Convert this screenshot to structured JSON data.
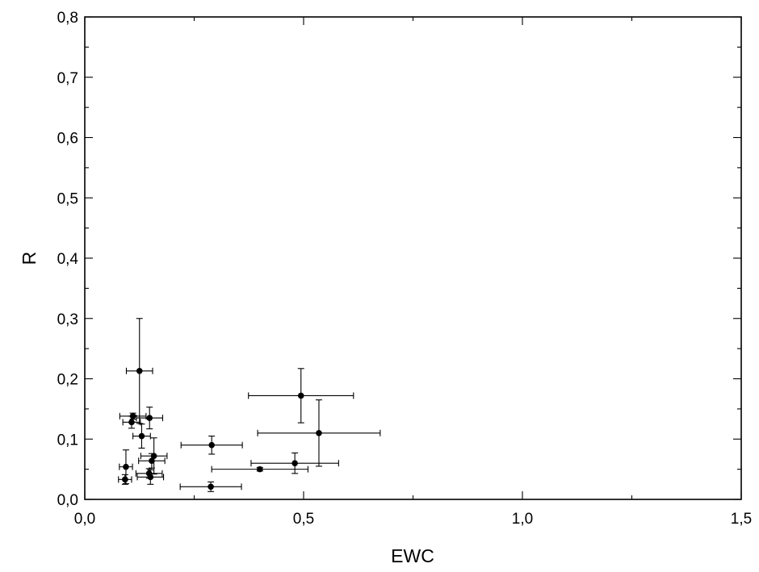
{
  "chart_data": {
    "type": "scatter",
    "title": "",
    "xlabel": "EWC",
    "ylabel": "R",
    "xlim": [
      0,
      1.5
    ],
    "ylim": [
      0,
      0.8
    ],
    "x_ticks": [
      {
        "value": 0,
        "label": "0,0"
      },
      {
        "value": 0.5,
        "label": "0,5"
      },
      {
        "value": 1.0,
        "label": "1,0"
      },
      {
        "value": 1.5,
        "label": "1,5"
      }
    ],
    "y_ticks": [
      {
        "value": 0,
        "label": "0,0"
      },
      {
        "value": 0.1,
        "label": "0,1"
      },
      {
        "value": 0.2,
        "label": "0,2"
      },
      {
        "value": 0.3,
        "label": "0,3"
      },
      {
        "value": 0.4,
        "label": "0,4"
      },
      {
        "value": 0.5,
        "label": "0,5"
      },
      {
        "value": 0.6,
        "label": "0,6"
      },
      {
        "value": 0.7,
        "label": "0,7"
      },
      {
        "value": 0.8,
        "label": "0,8"
      }
    ],
    "grid": false,
    "points": [
      {
        "x": 0.125,
        "y": 0.213,
        "xerr": 0.03,
        "yerr": 0.087
      },
      {
        "x": 0.107,
        "y": 0.128,
        "xerr": 0.02,
        "yerr": 0.01
      },
      {
        "x": 0.11,
        "y": 0.138,
        "xerr": 0.03,
        "yerr": 0.005
      },
      {
        "x": 0.148,
        "y": 0.135,
        "xerr": 0.03,
        "yerr": 0.018
      },
      {
        "x": 0.13,
        "y": 0.105,
        "xerr": 0.02,
        "yerr": 0.02
      },
      {
        "x": 0.094,
        "y": 0.054,
        "xerr": 0.015,
        "yerr": 0.028
      },
      {
        "x": 0.092,
        "y": 0.033,
        "xerr": 0.015,
        "yerr": 0.008
      },
      {
        "x": 0.158,
        "y": 0.072,
        "xerr": 0.03,
        "yerr": 0.03
      },
      {
        "x": 0.153,
        "y": 0.064,
        "xerr": 0.03,
        "yerr": 0.012
      },
      {
        "x": 0.147,
        "y": 0.043,
        "xerr": 0.03,
        "yerr": 0.008
      },
      {
        "x": 0.15,
        "y": 0.037,
        "xerr": 0.03,
        "yerr": 0.012
      },
      {
        "x": 0.29,
        "y": 0.09,
        "xerr": 0.07,
        "yerr": 0.015
      },
      {
        "x": 0.288,
        "y": 0.021,
        "xerr": 0.07,
        "yerr": 0.008
      },
      {
        "x": 0.4,
        "y": 0.05,
        "xerr": 0.11,
        "yerr": 0.003
      },
      {
        "x": 0.48,
        "y": 0.06,
        "xerr": 0.1,
        "yerr": 0.017
      },
      {
        "x": 0.494,
        "y": 0.172,
        "xerr": 0.12,
        "yerr": 0.045
      },
      {
        "x": 0.535,
        "y": 0.11,
        "xerr": 0.14,
        "yerr": 0.055
      }
    ]
  }
}
